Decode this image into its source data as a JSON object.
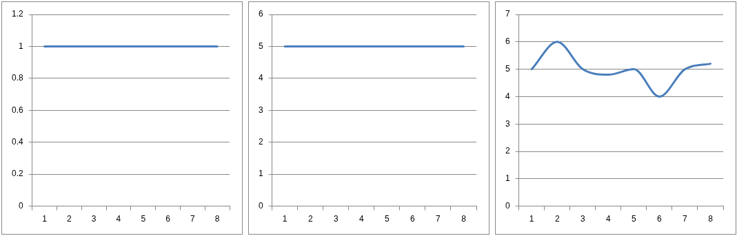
{
  "chart_data": [
    {
      "type": "line",
      "categories": [
        "1",
        "2",
        "3",
        "4",
        "5",
        "6",
        "7",
        "8"
      ],
      "series": [
        {
          "color": "#4a7ebb",
          "values": [
            1,
            1,
            1,
            1,
            1,
            1,
            1,
            1
          ]
        }
      ],
      "ylim": [
        0,
        1.2
      ],
      "yticks": [
        0,
        0.2,
        0.4,
        0.6,
        0.8,
        1,
        1.2
      ],
      "grid": "y",
      "legend": false,
      "marker": "none"
    },
    {
      "type": "line",
      "categories": [
        "1",
        "2",
        "3",
        "4",
        "5",
        "6",
        "7",
        "8"
      ],
      "series": [
        {
          "color": "#4a7ebb",
          "values": [
            5,
            5,
            5,
            5,
            5,
            5,
            5,
            5
          ]
        }
      ],
      "ylim": [
        0,
        6
      ],
      "yticks": [
        0,
        1,
        2,
        3,
        4,
        5,
        6
      ],
      "grid": "y",
      "legend": false,
      "marker": "none"
    },
    {
      "type": "line",
      "categories": [
        "1",
        "2",
        "3",
        "4",
        "5",
        "6",
        "7",
        "8"
      ],
      "series": [
        {
          "color": "#4a7ebb",
          "values": [
            5,
            6,
            5,
            4.8,
            5,
            4,
            5,
            5.2
          ]
        }
      ],
      "ylim": [
        0,
        7
      ],
      "yticks": [
        0,
        1,
        2,
        3,
        4,
        5,
        6,
        7
      ],
      "grid": "y",
      "legend": false,
      "marker": "none"
    }
  ]
}
